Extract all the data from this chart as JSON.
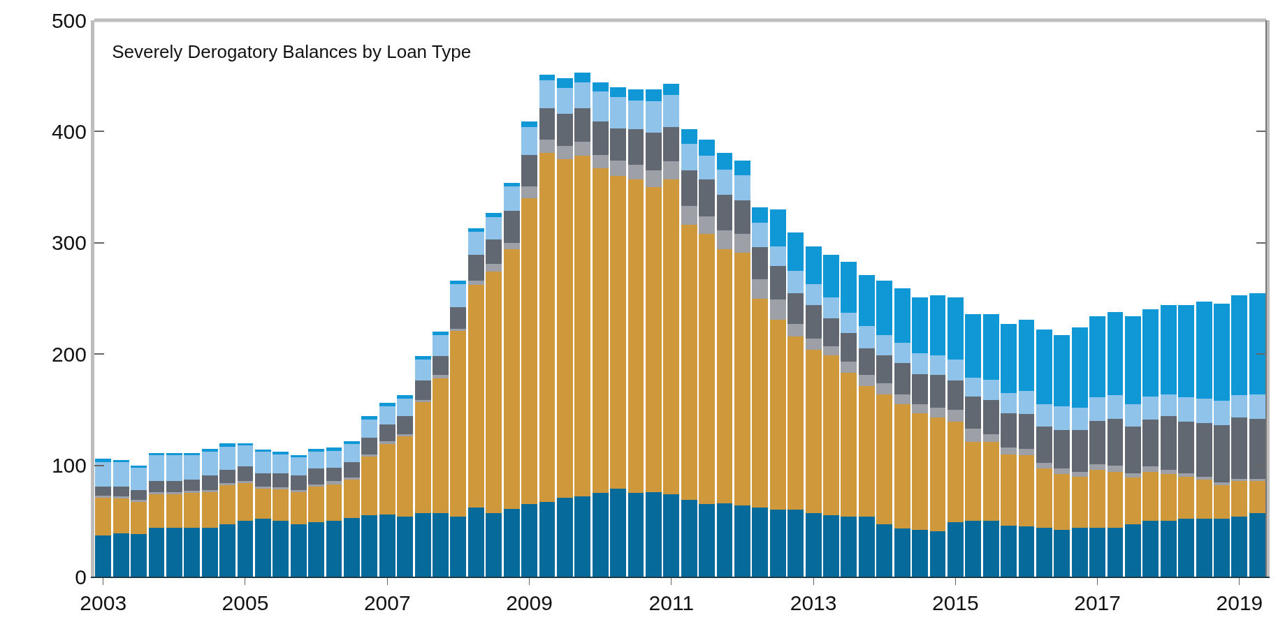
{
  "chart_data": {
    "type": "bar",
    "stacked": true,
    "title": "Severely Derogatory Balances by Loan Type",
    "categories": [
      "2003",
      null,
      null,
      null,
      null,
      null,
      null,
      null,
      "2005",
      null,
      null,
      null,
      null,
      null,
      null,
      null,
      "2007",
      null,
      null,
      null,
      null,
      null,
      null,
      null,
      "2009",
      null,
      null,
      null,
      null,
      null,
      null,
      null,
      "2011",
      null,
      null,
      null,
      null,
      null,
      null,
      null,
      "2013",
      null,
      null,
      null,
      null,
      null,
      null,
      null,
      "2015",
      null,
      null,
      null,
      null,
      null,
      null,
      null,
      "2017",
      null,
      null,
      null,
      null,
      null,
      null,
      null,
      "2019",
      null
    ],
    "series": [
      {
        "color": "#066a9a",
        "values": [
          37,
          39,
          38,
          44,
          44,
          44,
          44,
          47,
          50,
          52,
          50,
          47,
          49,
          50,
          53,
          55,
          56,
          54,
          57,
          57,
          54,
          62,
          57,
          61,
          65,
          67,
          71,
          72,
          75,
          79,
          75,
          76,
          74,
          69,
          65,
          66,
          64,
          62,
          60,
          60,
          57,
          55,
          54,
          54,
          47,
          43,
          42,
          41,
          49,
          50,
          50,
          46,
          45,
          44,
          42,
          44,
          44,
          44,
          47,
          50,
          50,
          52,
          52,
          52,
          54,
          57
        ]
      },
      {
        "color": "#cf993b",
        "values": [
          34,
          31,
          29,
          30,
          30,
          31,
          32,
          35,
          34,
          27,
          29,
          29,
          32,
          33,
          34,
          53,
          63,
          72,
          100,
          121,
          167,
          200,
          217,
          233,
          275,
          314,
          304,
          306,
          292,
          281,
          282,
          274,
          283,
          247,
          243,
          228,
          227,
          188,
          171,
          156,
          147,
          144,
          129,
          117,
          117,
          112,
          105,
          102,
          90,
          71,
          71,
          64,
          64,
          53,
          50,
          46,
          52,
          50,
          42,
          44,
          42,
          38,
          35,
          30,
          32,
          29
        ]
      },
      {
        "color": "#9da0a6",
        "values": [
          2,
          2,
          2,
          2,
          2,
          2,
          2,
          2,
          2,
          2,
          1,
          2,
          2,
          3,
          2,
          2,
          3,
          2,
          2,
          3,
          2,
          4,
          7,
          6,
          11,
          12,
          12,
          13,
          12,
          14,
          13,
          15,
          16,
          17,
          16,
          17,
          17,
          17,
          18,
          11,
          10,
          8,
          10,
          10,
          10,
          9,
          8,
          9,
          11,
          12,
          7,
          6,
          6,
          5,
          5,
          4,
          5,
          6,
          4,
          5,
          4,
          3,
          3,
          3,
          2,
          2
        ]
      },
      {
        "color": "#616871",
        "values": [
          8,
          9,
          9,
          10,
          10,
          10,
          13,
          12,
          13,
          12,
          13,
          13,
          14,
          12,
          14,
          15,
          15,
          16,
          17,
          17,
          19,
          23,
          22,
          29,
          28,
          28,
          29,
          30,
          30,
          29,
          32,
          34,
          31,
          32,
          33,
          32,
          30,
          29,
          30,
          28,
          30,
          25,
          26,
          24,
          25,
          28,
          27,
          29,
          26,
          29,
          31,
          31,
          31,
          33,
          35,
          38,
          39,
          42,
          42,
          42,
          48,
          46,
          48,
          51,
          55,
          54
        ]
      },
      {
        "color": "#8fc3ea",
        "values": [
          22,
          22,
          20,
          23,
          23,
          22,
          21,
          21,
          19,
          19,
          17,
          16,
          15,
          15,
          16,
          16,
          16,
          16,
          19,
          19,
          21,
          21,
          20,
          22,
          25,
          25,
          23,
          23,
          27,
          28,
          26,
          28,
          29,
          24,
          21,
          23,
          23,
          22,
          18,
          20,
          19,
          19,
          18,
          20,
          18,
          18,
          19,
          18,
          19,
          17,
          18,
          18,
          21,
          20,
          21,
          20,
          21,
          21,
          20,
          21,
          20,
          22,
          22,
          22,
          20,
          22
        ]
      },
      {
        "color": "#0f97d6",
        "values": [
          3,
          2,
          2,
          2,
          2,
          2,
          3,
          3,
          2,
          2,
          2,
          2,
          3,
          3,
          3,
          3,
          3,
          3,
          3,
          3,
          3,
          3,
          4,
          3,
          5,
          5,
          9,
          9,
          8,
          9,
          10,
          11,
          10,
          13,
          15,
          15,
          13,
          14,
          33,
          34,
          34,
          38,
          46,
          46,
          49,
          49,
          50,
          54,
          56,
          57,
          59,
          62,
          64,
          67,
          64,
          72,
          73,
          75,
          79,
          78,
          80,
          83,
          87,
          87,
          90,
          91
        ]
      }
    ],
    "ylim": [
      0,
      500
    ],
    "yticks": [
      0,
      100,
      200,
      300,
      400,
      500
    ]
  }
}
